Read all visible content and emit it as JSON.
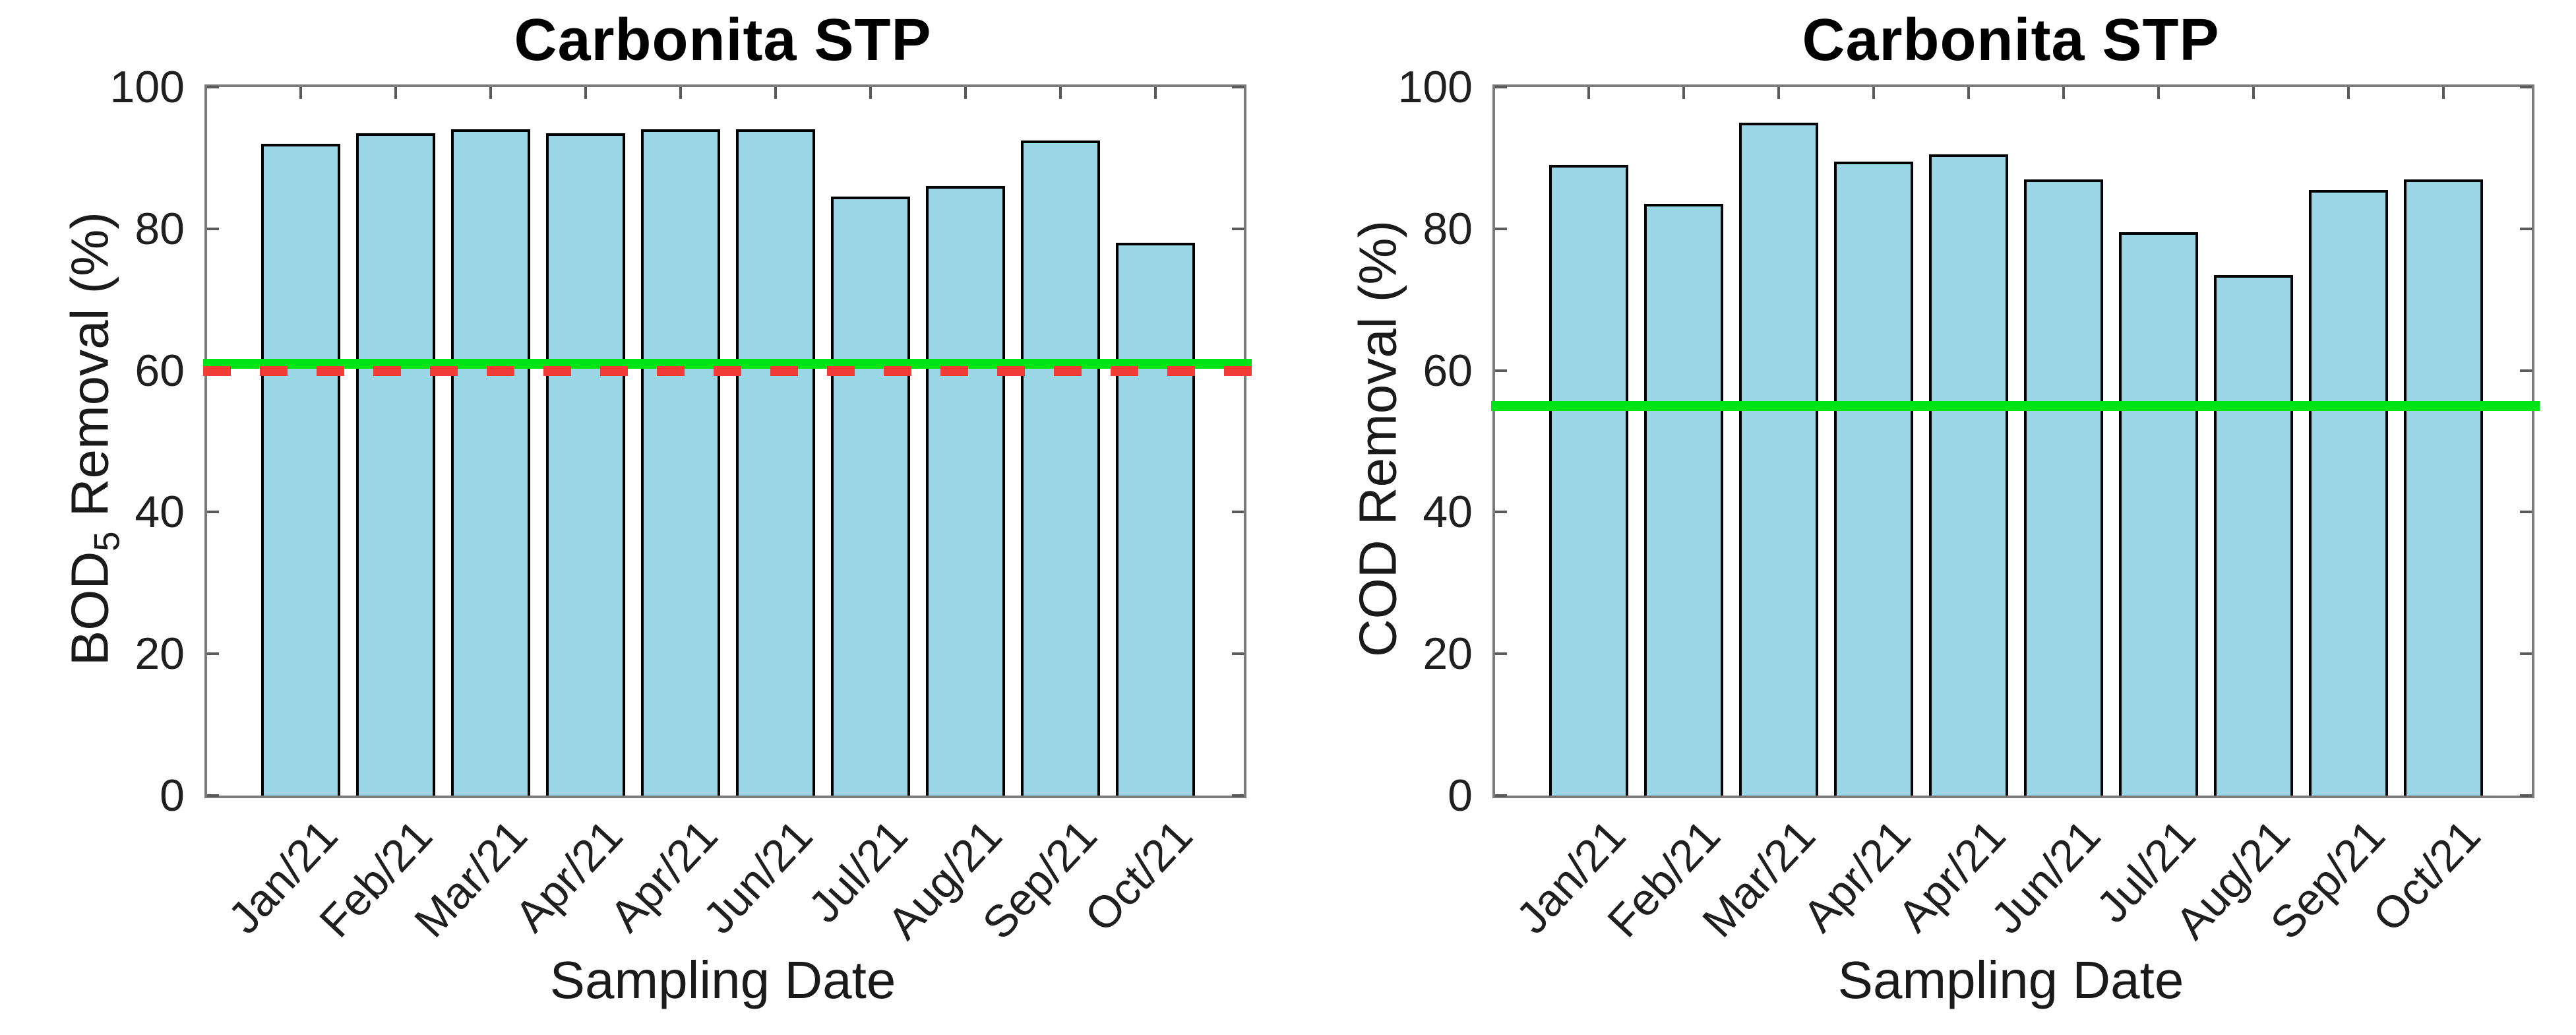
{
  "figure": {
    "background": "#ffffff"
  },
  "style": {
    "axis_frame_color": "#7b7b7b",
    "tick_color": "#5a5a5a",
    "text_color": "#1f1f1f",
    "title_color": "#000000"
  },
  "chart_data": [
    {
      "type": "bar",
      "title": "Carbonita STP",
      "xlabel": "Sampling Date",
      "ylabel": "BOD5 Removal (%)",
      "ylabel_parts": {
        "main": "BOD",
        "sub": "5",
        "rest": " Removal (%)"
      },
      "categories": [
        "Jan/21",
        "Feb/21",
        "Mar/21",
        "Apr/21",
        "Apr/21",
        "Jun/21",
        "Jul/21",
        "Aug/21",
        "Sep/21",
        "Oct/21"
      ],
      "values": [
        92,
        93.5,
        94,
        93.5,
        94,
        94,
        84.5,
        86,
        92.5,
        78
      ],
      "ylim": [
        0,
        100
      ],
      "yticks": [
        0,
        20,
        40,
        60,
        80,
        100
      ],
      "grid": false,
      "legend": "none",
      "bar_fill": "#9ad6e5",
      "bar_edge": "#000000",
      "reference_lines": [
        {
          "name": "green-target-line",
          "value": 61,
          "color": "#00e417",
          "style": "solid"
        },
        {
          "name": "red-limit-line",
          "value": 60,
          "color": "#f23c38",
          "style": "dashed"
        }
      ]
    },
    {
      "type": "bar",
      "title": "Carbonita STP",
      "xlabel": "Sampling Date",
      "ylabel": "COD Removal (%)",
      "ylabel_parts": {
        "main": "COD",
        "sub": "",
        "rest": " Removal (%)"
      },
      "categories": [
        "Jan/21",
        "Feb/21",
        "Mar/21",
        "Apr/21",
        "Apr/21",
        "Jun/21",
        "Jul/21",
        "Aug/21",
        "Sep/21",
        "Oct/21"
      ],
      "values": [
        89,
        83.5,
        95,
        89.5,
        90.5,
        87,
        79.5,
        73.5,
        85.5,
        87
      ],
      "ylim": [
        0,
        100
      ],
      "yticks": [
        0,
        20,
        40,
        60,
        80,
        100
      ],
      "grid": false,
      "legend": "none",
      "bar_fill": "#9ad6e5",
      "bar_edge": "#000000",
      "reference_lines": [
        {
          "name": "green-target-line",
          "value": 55,
          "color": "#00e417",
          "style": "solid"
        }
      ]
    }
  ]
}
